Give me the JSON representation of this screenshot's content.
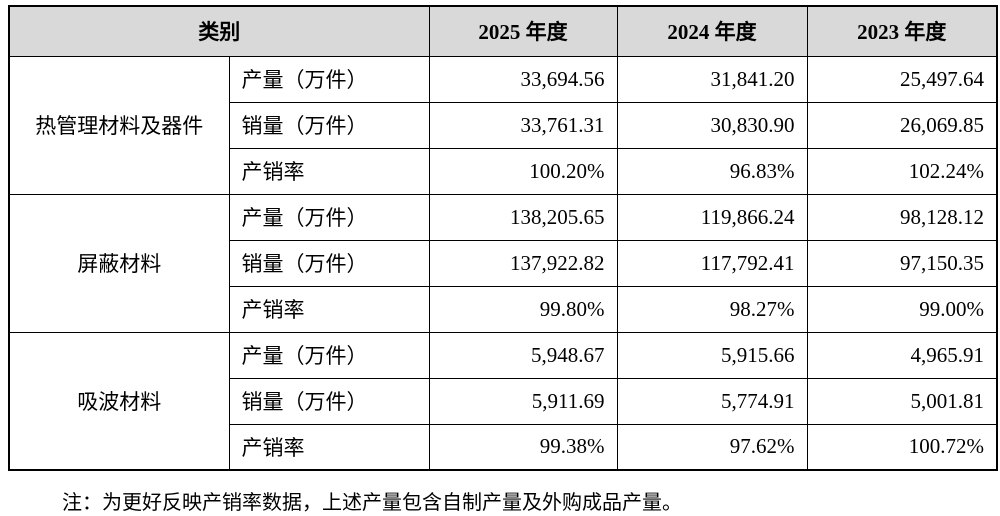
{
  "table": {
    "header": [
      "类别",
      "2025 年度",
      "2024 年度",
      "2023 年度"
    ],
    "groups": [
      {
        "name": "热管理材料及器件",
        "rows": [
          [
            "产量（万件）",
            "33,694.56",
            "31,841.20",
            "25,497.64"
          ],
          [
            "销量（万件）",
            "33,761.31",
            "30,830.90",
            "26,069.85"
          ],
          [
            "产销率",
            "100.20%",
            "96.83%",
            "102.24%"
          ]
        ]
      },
      {
        "name": "屏蔽材料",
        "rows": [
          [
            "产量（万件）",
            "138,205.65",
            "119,866.24",
            "98,128.12"
          ],
          [
            "销量（万件）",
            "137,922.82",
            "117,792.41",
            "97,150.35"
          ],
          [
            "产销率",
            "99.80%",
            "98.27%",
            "99.00%"
          ]
        ]
      },
      {
        "name": "吸波材料",
        "rows": [
          [
            "产量（万件）",
            "5,948.67",
            "5,915.66",
            "4,965.91"
          ],
          [
            "销量（万件）",
            "5,911.69",
            "5,774.91",
            "5,001.81"
          ],
          [
            "产销率",
            "99.38%",
            "97.62%",
            "100.72%"
          ]
        ]
      }
    ]
  },
  "note": "注：为更好反映产销率数据，上述产量包含自制产量及外购成品产量。"
}
